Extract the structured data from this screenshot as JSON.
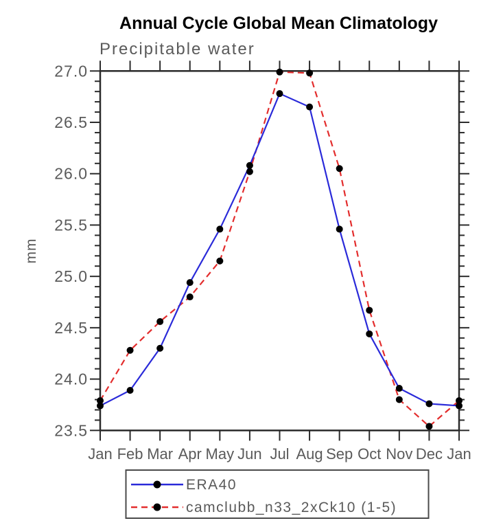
{
  "header": {
    "title": "Annual Cycle Global Mean Climatology",
    "subtitle": "Precipitable water"
  },
  "colors": {
    "axis": "#2b2b2b",
    "label_gray": "#5a5a5a",
    "era40_blue": "#2a2ad9",
    "model_red": "#e32d2d",
    "marker_black": "#000000"
  },
  "chart_data": {
    "type": "line",
    "title": "Annual Cycle Global Mean Climatology",
    "subtitle": "Precipitable water",
    "xlabel": "",
    "ylabel": "mm",
    "categories": [
      "Jan",
      "Feb",
      "Mar",
      "Apr",
      "May",
      "Jun",
      "Jul",
      "Aug",
      "Sep",
      "Oct",
      "Nov",
      "Dec",
      "Jan"
    ],
    "series": [
      {
        "name": "ERA40",
        "color": "#2a2ad9",
        "style": "solid",
        "marker": "circle",
        "marker_color": "#000000",
        "values": [
          23.74,
          23.89,
          24.3,
          24.94,
          25.46,
          26.08,
          26.78,
          26.65,
          25.46,
          24.44,
          23.91,
          23.76,
          23.74
        ]
      },
      {
        "name": "camclubb_n33_2xCk10 (1-5)",
        "color": "#e32d2d",
        "style": "dashed",
        "marker": "circle",
        "marker_color": "#000000",
        "values": [
          23.79,
          24.28,
          24.56,
          24.8,
          25.15,
          26.02,
          26.99,
          26.98,
          26.05,
          24.67,
          23.8,
          23.54,
          23.79
        ]
      }
    ],
    "ylim": [
      23.5,
      27.0
    ],
    "ytick_major_step": 0.5,
    "ytick_minor_step": 0.1,
    "ytick_labels": [
      "23.5",
      "24.0",
      "24.5",
      "25.0",
      "25.5",
      "26.0",
      "26.5",
      "27.0"
    ],
    "grid": false,
    "legend_position": "bottom-box"
  }
}
